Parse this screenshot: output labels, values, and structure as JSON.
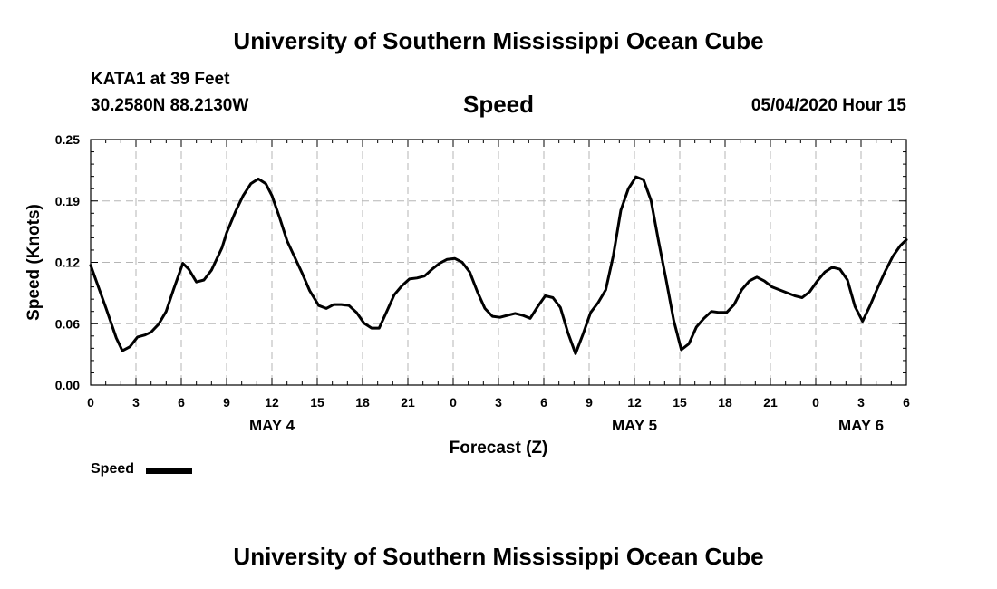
{
  "header": {
    "title": "University of Southern Mississippi Ocean Cube",
    "station": "KATA1 at 39 Feet",
    "coords": "30.2580N 88.2130W",
    "chart_title": "Speed",
    "datetime": "05/04/2020 Hour 15"
  },
  "footer": {
    "title": "University of Southern Mississippi Ocean Cube"
  },
  "legend": {
    "label": "Speed"
  },
  "chart_data": {
    "type": "line",
    "title": "Speed",
    "xlabel": "Forecast (Z)",
    "ylabel": "Speed (Knots)",
    "xlim": [
      0,
      54
    ],
    "ylim": [
      0,
      0.25
    ],
    "y_ticks": [
      "0.00",
      "0.06",
      "0.12",
      "0.19",
      "0.25"
    ],
    "y_tick_values": [
      0,
      0.0625,
      0.125,
      0.1875,
      0.25
    ],
    "x_tick_values": [
      0,
      3,
      6,
      9,
      12,
      15,
      18,
      21,
      24,
      27,
      30,
      33,
      36,
      39,
      42,
      45,
      48,
      51,
      54
    ],
    "x_tick_labels": [
      "0",
      "3",
      "6",
      "9",
      "12",
      "15",
      "18",
      "21",
      "0",
      "3",
      "6",
      "9",
      "12",
      "15",
      "18",
      "21",
      "0",
      "3",
      "6"
    ],
    "date_labels": [
      {
        "label": "MAY 4",
        "hour": 12
      },
      {
        "label": "MAY 5",
        "hour": 36
      },
      {
        "label": "MAY 6",
        "hour": 51
      }
    ],
    "grid": true,
    "color": "#000000",
    "series": [
      {
        "name": "Speed",
        "x": [
          0,
          1,
          1.7,
          2.1,
          2.6,
          3.1,
          3.6,
          4,
          4.5,
          5,
          5.5,
          6.1,
          6.5,
          7,
          7.5,
          8,
          8.7,
          9,
          9.6,
          10.1,
          10.6,
          11.1,
          11.6,
          12,
          12.5,
          13,
          14,
          14.5,
          15.1,
          15.6,
          16.1,
          16.6,
          17.1,
          17.6,
          18.1,
          18.6,
          19.1,
          19.6,
          20.1,
          20.6,
          21.1,
          21.6,
          22.1,
          22.6,
          23.1,
          23.6,
          24.1,
          24.6,
          25.1,
          25.6,
          26.1,
          26.6,
          27.1,
          27.6,
          28.1,
          28.6,
          29.1,
          29.6,
          30.1,
          30.6,
          31.1,
          31.6,
          32.1,
          32.6,
          33.1,
          33.6,
          34.1,
          34.6,
          35.1,
          35.6,
          36.1,
          36.6,
          37.1,
          37.6,
          38.1,
          38.6,
          39.1,
          39.6,
          40.1,
          40.6,
          41.1,
          41.6,
          42.1,
          42.6,
          43.1,
          43.6,
          44.1,
          44.6,
          45.1,
          45.6,
          46.1,
          46.6,
          47.1,
          47.6,
          48.1,
          48.6,
          49.1,
          49.6,
          50.1,
          50.6,
          51.1,
          51.6,
          52.1,
          52.6,
          53.1,
          53.6,
          54
        ],
        "values": [
          0.122,
          0.079,
          0.048,
          0.035,
          0.039,
          0.049,
          0.051,
          0.054,
          0.062,
          0.075,
          0.098,
          0.124,
          0.118,
          0.105,
          0.107,
          0.117,
          0.14,
          0.155,
          0.177,
          0.193,
          0.205,
          0.21,
          0.205,
          0.193,
          0.171,
          0.147,
          0.114,
          0.096,
          0.081,
          0.078,
          0.082,
          0.082,
          0.081,
          0.074,
          0.063,
          0.058,
          0.058,
          0.075,
          0.092,
          0.101,
          0.108,
          0.109,
          0.111,
          0.118,
          0.124,
          0.128,
          0.129,
          0.125,
          0.115,
          0.095,
          0.078,
          0.07,
          0.069,
          0.071,
          0.073,
          0.071,
          0.068,
          0.08,
          0.091,
          0.089,
          0.079,
          0.053,
          0.032,
          0.052,
          0.074,
          0.084,
          0.097,
          0.132,
          0.178,
          0.2,
          0.212,
          0.209,
          0.188,
          0.146,
          0.107,
          0.066,
          0.036,
          0.042,
          0.059,
          0.068,
          0.075,
          0.074,
          0.074,
          0.082,
          0.097,
          0.106,
          0.11,
          0.106,
          0.1,
          0.097,
          0.094,
          0.091,
          0.089,
          0.095,
          0.106,
          0.115,
          0.12,
          0.118,
          0.107,
          0.08,
          0.065,
          0.081,
          0.099,
          0.116,
          0.131,
          0.142,
          0.148
        ]
      }
    ]
  }
}
